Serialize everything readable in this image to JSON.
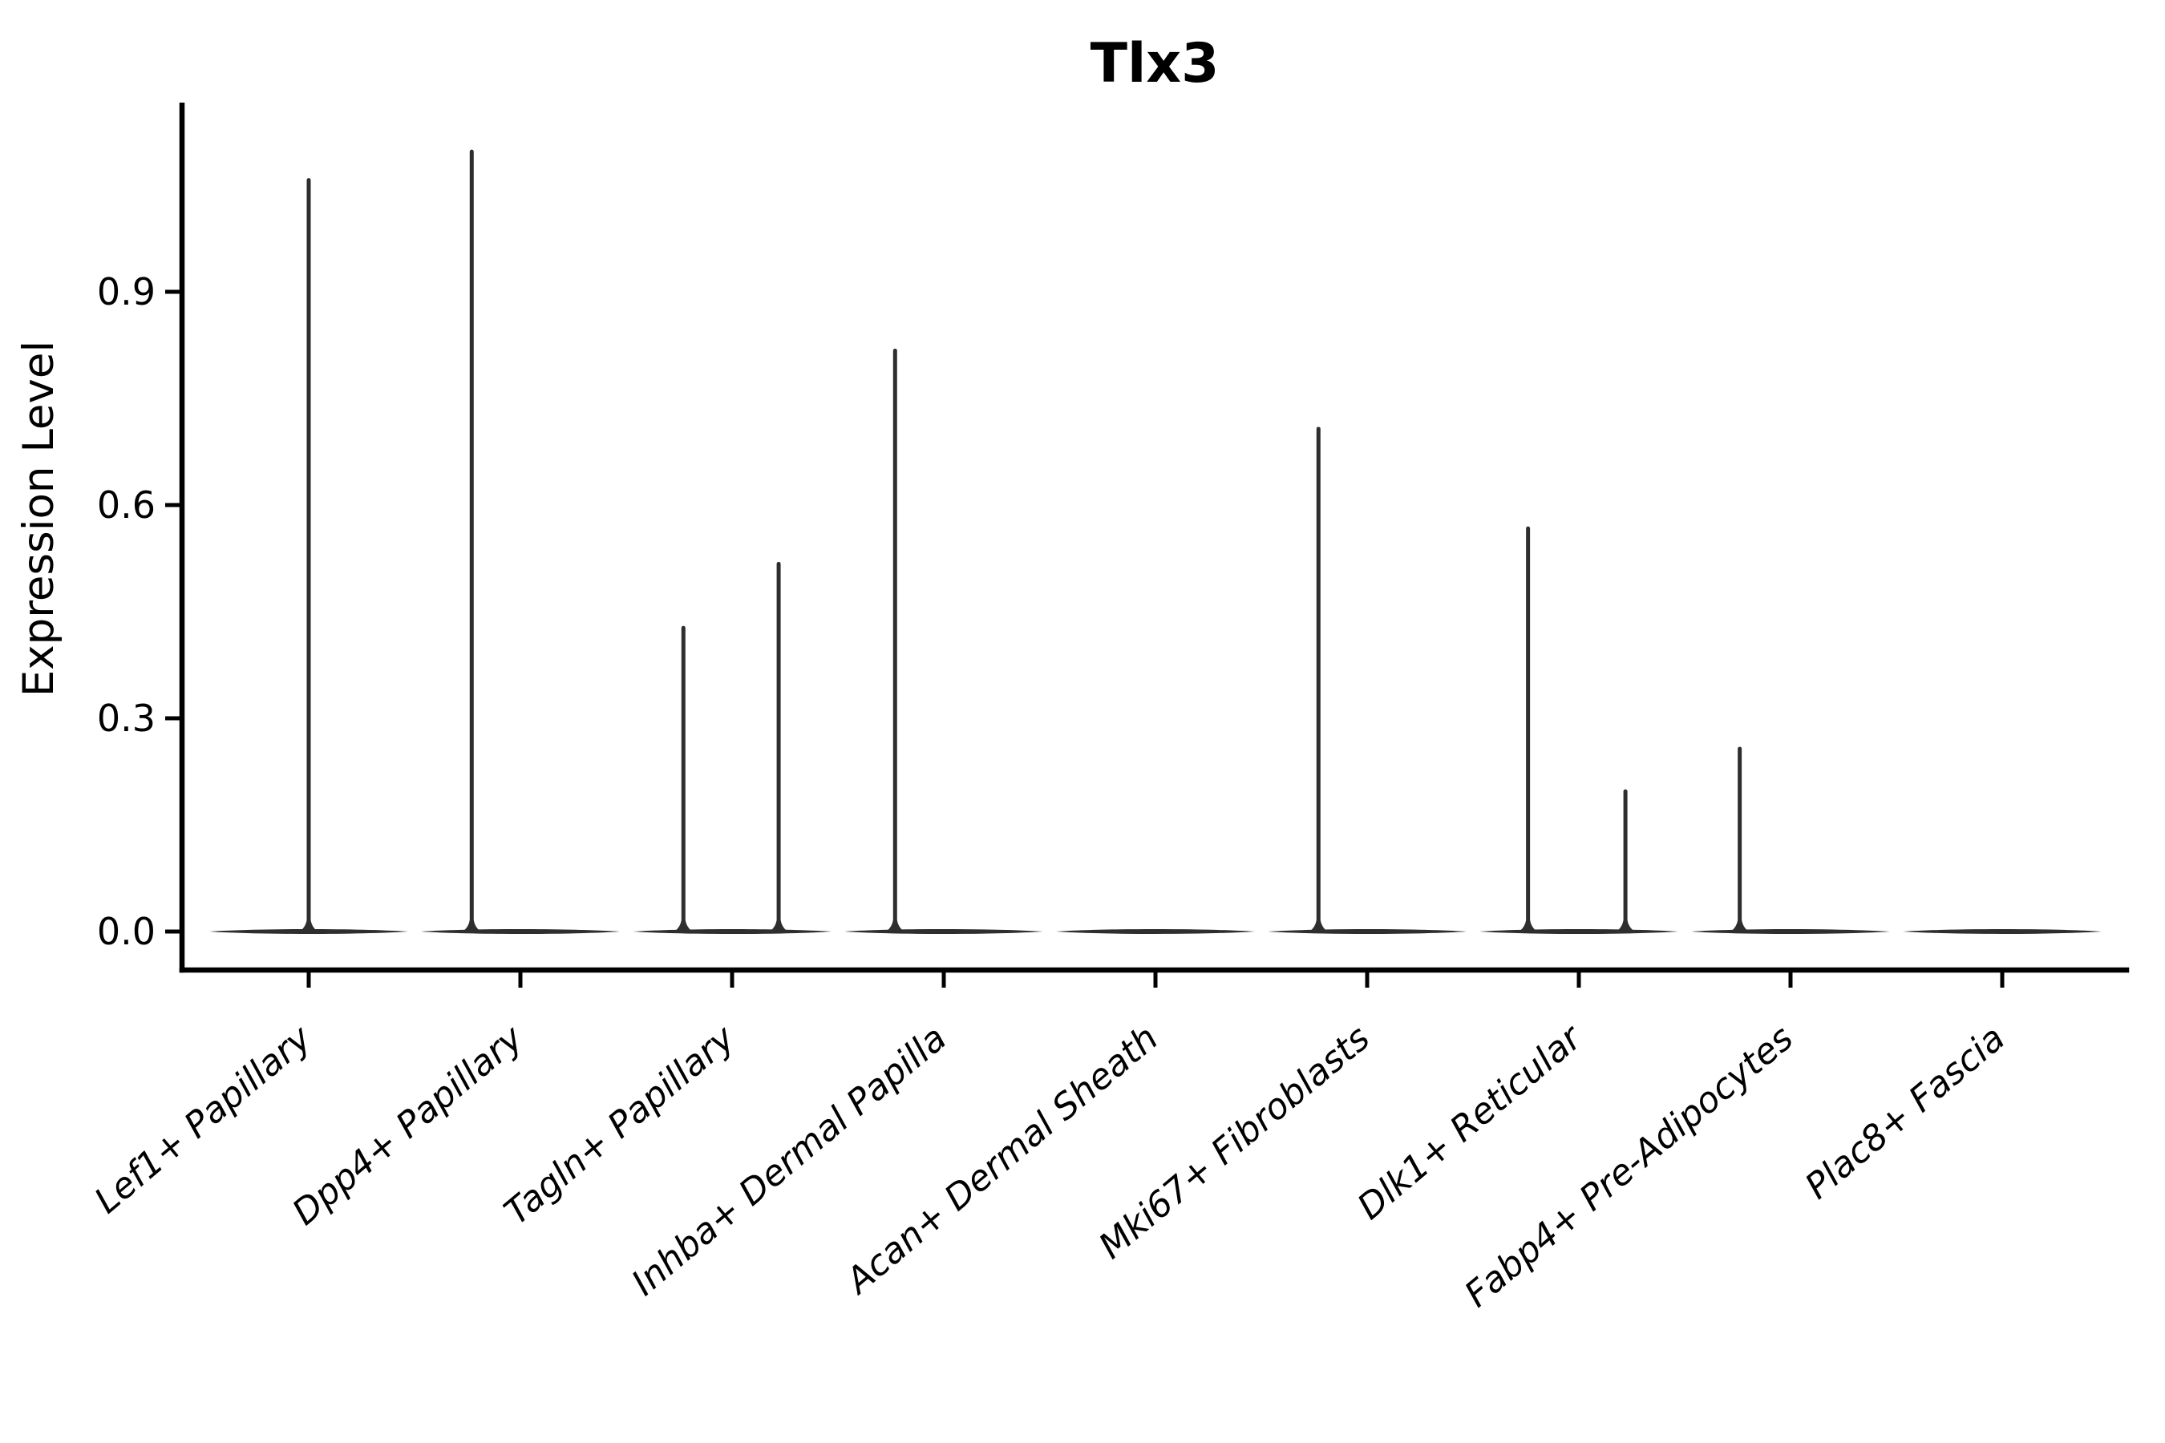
{
  "chart_data": {
    "type": "violin",
    "title": "Tlx3",
    "xlabel": "",
    "ylabel": "Expression Level",
    "categories": [
      "Lef1+ Papillary",
      "Dpp4+ Papillary",
      "Tagln+ Papillary",
      "Inhba+ Dermal Papilla",
      "Acan+ Dermal Sheath",
      "Mki67+ Fibroblasts",
      "Dlk1+ Reticular",
      "Fabp4+ Pre-Adipocytes",
      "Plac8+ Fascia"
    ],
    "yticks": [
      0.0,
      0.3,
      0.6,
      0.9
    ],
    "ylim": [
      -0.054,
      1.163
    ],
    "grid": false,
    "legend": null,
    "violins": [
      {
        "category": "Lef1+ Papillary",
        "base_value": 0.0,
        "spikes": [
          {
            "offset": 0.0,
            "value": 1.06
          }
        ]
      },
      {
        "category": "Dpp4+ Papillary",
        "base_value": 0.0,
        "spikes": [
          {
            "offset": -0.23,
            "value": 1.1
          }
        ]
      },
      {
        "category": "Tagln+ Papillary",
        "base_value": 0.0,
        "spikes": [
          {
            "offset": -0.23,
            "value": 0.43
          },
          {
            "offset": 0.22,
            "value": 0.52
          }
        ]
      },
      {
        "category": "Inhba+ Dermal Papilla",
        "base_value": 0.0,
        "spikes": [
          {
            "offset": -0.23,
            "value": 0.82
          }
        ]
      },
      {
        "category": "Acan+ Dermal Sheath",
        "base_value": 0.0,
        "spikes": []
      },
      {
        "category": "Mki67+ Fibroblasts",
        "base_value": 0.0,
        "spikes": [
          {
            "offset": -0.23,
            "value": 0.71
          }
        ]
      },
      {
        "category": "Dlk1+ Reticular",
        "base_value": 0.0,
        "spikes": [
          {
            "offset": -0.24,
            "value": 0.57
          },
          {
            "offset": 0.22,
            "value": 0.2
          }
        ]
      },
      {
        "category": "Fabp4+ Pre-Adipocytes",
        "base_value": 0.0,
        "spikes": [
          {
            "offset": -0.24,
            "value": 0.26
          }
        ]
      },
      {
        "category": "Plac8+ Fascia",
        "base_value": 0.0,
        "spikes": []
      }
    ],
    "style": {
      "violin_color": "#2e2e2e",
      "axis_color": "#000000",
      "background": "#ffffff",
      "xlabel_rotation_deg": 40,
      "xlabels_italic": true
    }
  }
}
